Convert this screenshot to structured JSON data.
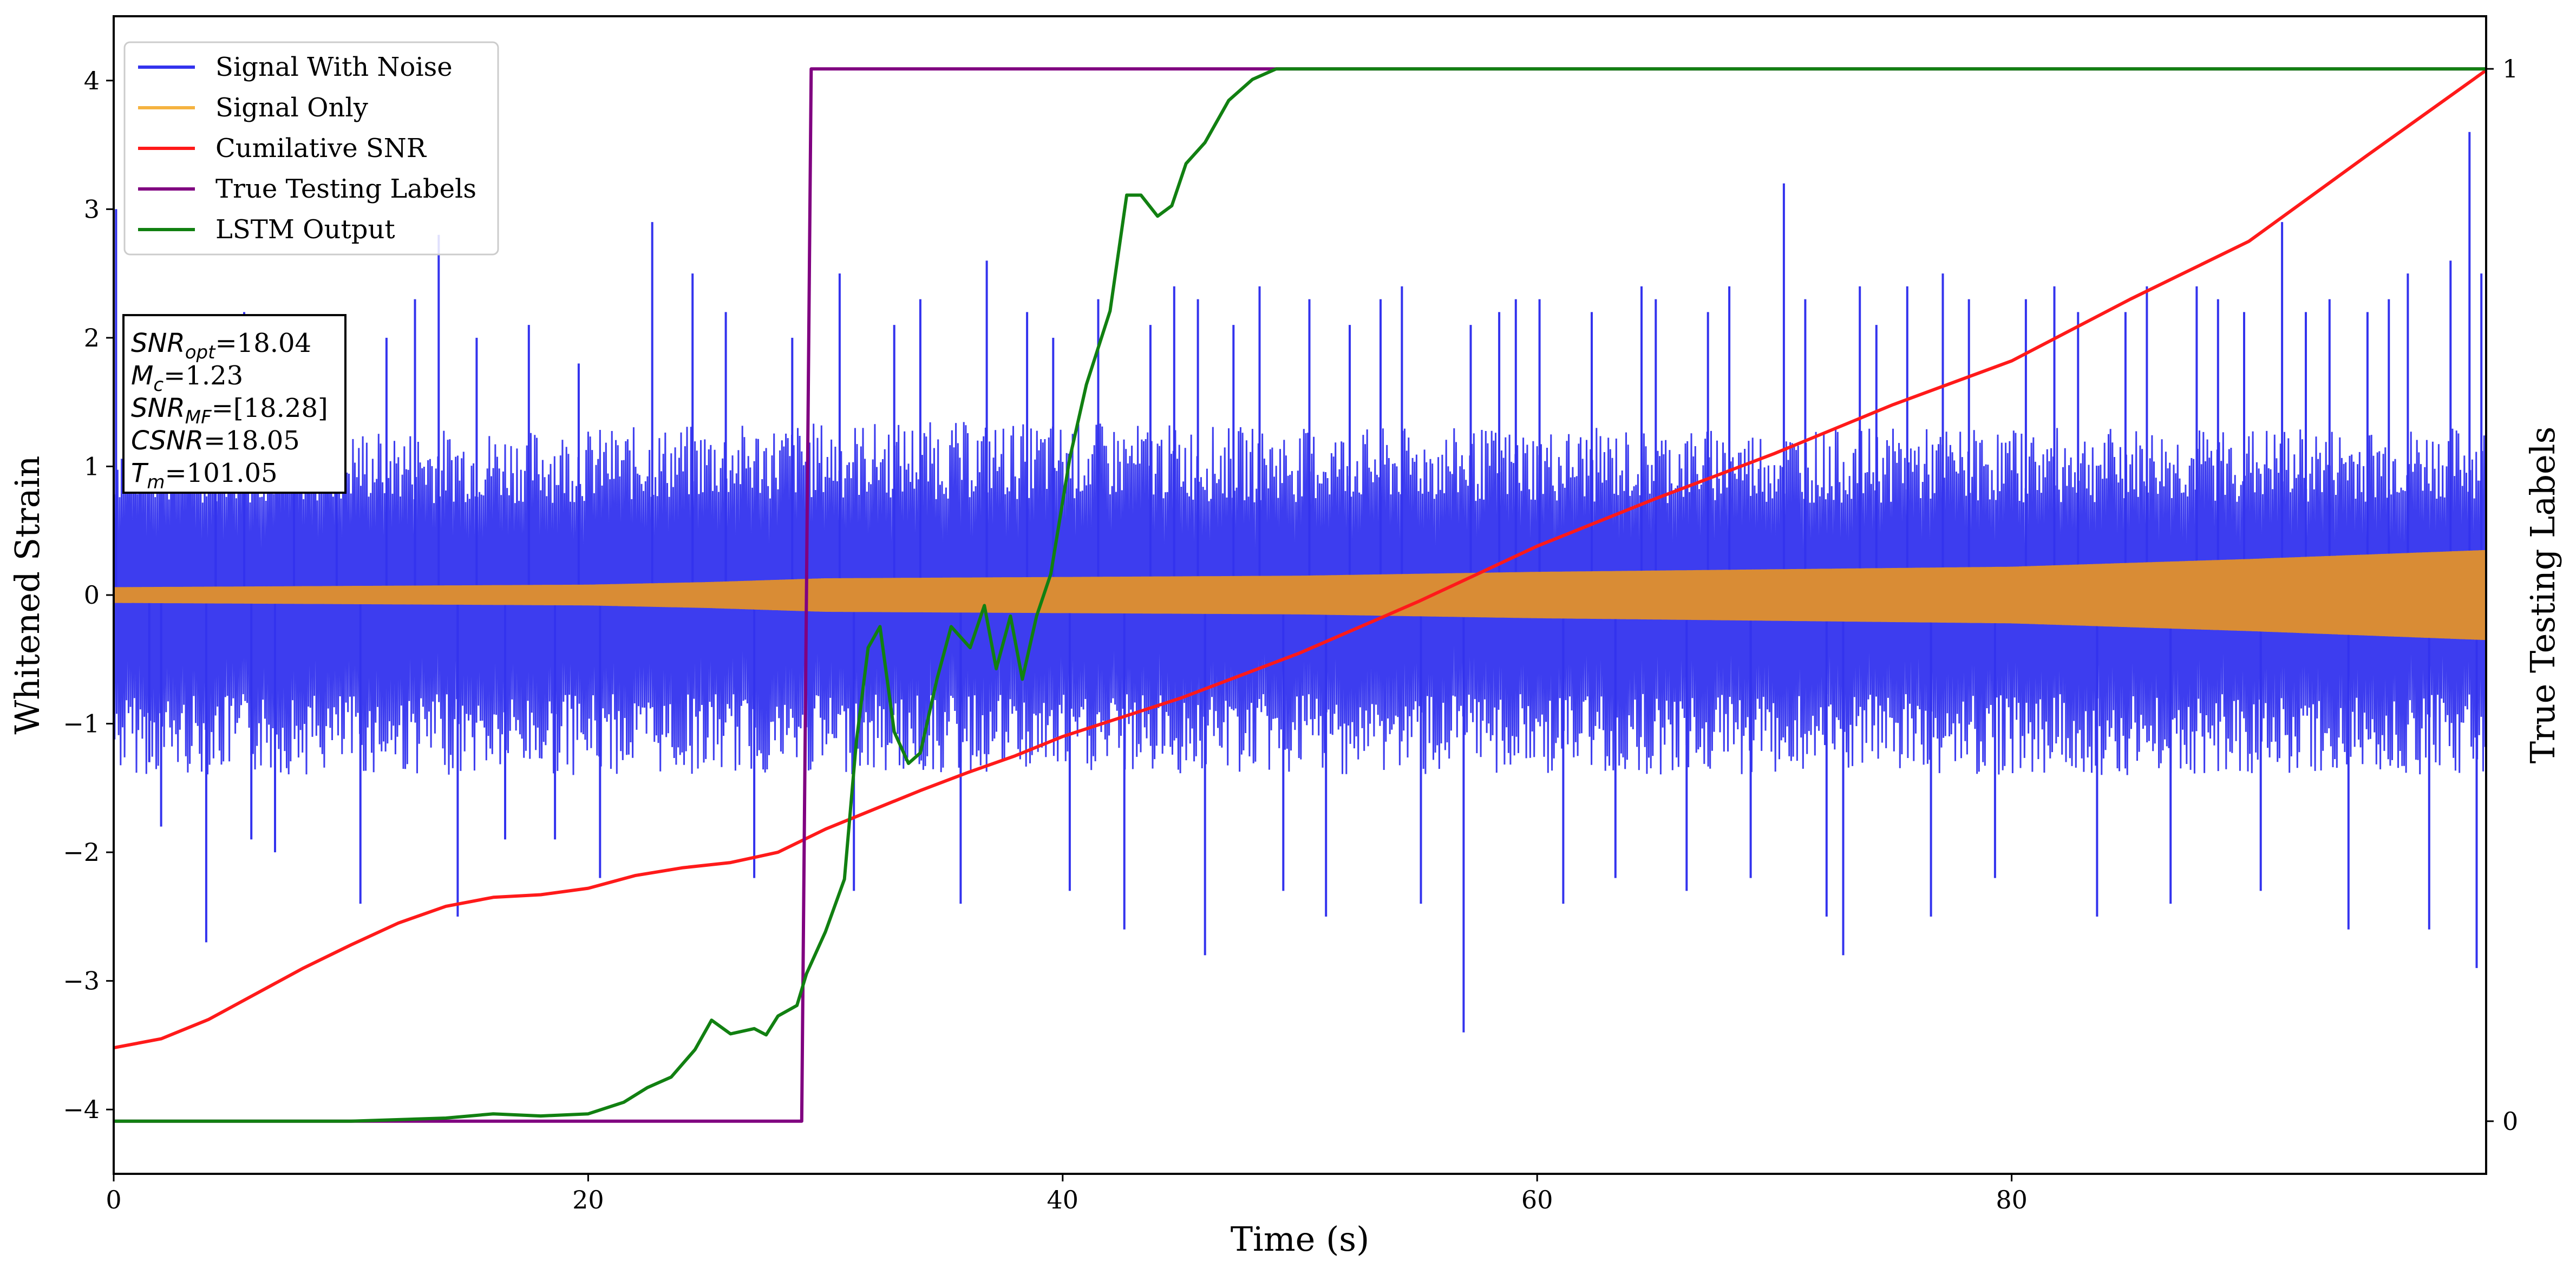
{
  "chart_data": {
    "type": "line",
    "title": "",
    "xlabel": "Time (s)",
    "ylabel": "Whitened Strain",
    "y2label": "True Testing Labels",
    "xlim": [
      0,
      100
    ],
    "ylim": [
      -4.5,
      4.5
    ],
    "y2lim": [
      -0.05,
      1.05
    ],
    "xticks": [
      0,
      20,
      40,
      60,
      80
    ],
    "yticks": [
      -4,
      -3,
      -2,
      -1,
      0,
      1,
      2,
      3,
      4
    ],
    "y2ticks": [
      0,
      1
    ],
    "tick_labels": {
      "x": [
        "0",
        "20",
        "40",
        "60",
        "80"
      ],
      "y": [
        "−4",
        "−3",
        "−2",
        "−1",
        "0",
        "1",
        "2",
        "3",
        "4"
      ],
      "y2": [
        "0",
        "1"
      ]
    },
    "grid": false,
    "legend_position": "upper-left",
    "legend": [
      {
        "name": "Signal With Noise",
        "color": "#3333ee"
      },
      {
        "name": "Signal Only",
        "color": "#f5b340"
      },
      {
        "name": "Cumilative SNR",
        "color": "#ff1a1a"
      },
      {
        "name": "True Testing Labels",
        "color": "#800080"
      },
      {
        "name": "LSTM Output",
        "color": "#118011"
      }
    ],
    "stats_box": {
      "lines": [
        {
          "sym": "SNR",
          "sub": "opt",
          "val": "=18.04"
        },
        {
          "sym": "M",
          "sub": "c",
          "val": "=1.23"
        },
        {
          "sym": "SNR",
          "sub": "MF",
          "val": "=[18.28]"
        },
        {
          "sym": "CSNR",
          "sub": "",
          "val": "=18.05"
        },
        {
          "sym": "T",
          "sub": "m",
          "val": "=101.05"
        }
      ]
    },
    "series": [
      {
        "name": "Signal With Noise",
        "axis": "left",
        "note": "dense noisy band roughly between -1.5 and 1.5 with spikes",
        "x": [
          0,
          10,
          20,
          30,
          40,
          50,
          60,
          70,
          80,
          90,
          100
        ],
        "upper": [
          1.3,
          1.3,
          1.3,
          1.35,
          1.35,
          1.3,
          1.3,
          1.3,
          1.3,
          1.3,
          1.3
        ],
        "lower": [
          -1.4,
          -1.4,
          -1.4,
          -1.4,
          -1.4,
          -1.4,
          -1.4,
          -1.4,
          -1.4,
          -1.4,
          -1.4
        ],
        "spikes": [
          {
            "x": 0.1,
            "y": 3.0
          },
          {
            "x": 1.5,
            "y": -1.3
          },
          {
            "x": 2.0,
            "y": -1.8
          },
          {
            "x": 3.9,
            "y": -2.7
          },
          {
            "x": 4.3,
            "y": 2.0
          },
          {
            "x": 5.5,
            "y": 2.2
          },
          {
            "x": 5.8,
            "y": -1.9
          },
          {
            "x": 6.8,
            "y": -2.0
          },
          {
            "x": 7.6,
            "y": 1.8
          },
          {
            "x": 9.4,
            "y": 2.1
          },
          {
            "x": 10.4,
            "y": -2.4
          },
          {
            "x": 11.5,
            "y": 2.0
          },
          {
            "x": 12.7,
            "y": 2.3
          },
          {
            "x": 13.7,
            "y": 2.8
          },
          {
            "x": 14.5,
            "y": -2.5
          },
          {
            "x": 15.3,
            "y": 2.0
          },
          {
            "x": 16.5,
            "y": -1.9
          },
          {
            "x": 17.5,
            "y": 2.1
          },
          {
            "x": 18.6,
            "y": -1.9
          },
          {
            "x": 19.6,
            "y": 1.8
          },
          {
            "x": 20.5,
            "y": -2.2
          },
          {
            "x": 22.7,
            "y": 2.9
          },
          {
            "x": 24.4,
            "y": 2.5
          },
          {
            "x": 25.8,
            "y": 2.2
          },
          {
            "x": 27.0,
            "y": -2.2
          },
          {
            "x": 28.6,
            "y": 2.0
          },
          {
            "x": 30.6,
            "y": 2.5
          },
          {
            "x": 31.2,
            "y": -2.3
          },
          {
            "x": 32.9,
            "y": 2.1
          },
          {
            "x": 34.0,
            "y": 2.3
          },
          {
            "x": 35.7,
            "y": -2.4
          },
          {
            "x": 36.8,
            "y": 2.6
          },
          {
            "x": 38.5,
            "y": 2.2
          },
          {
            "x": 39.6,
            "y": 2.0
          },
          {
            "x": 40.3,
            "y": -2.3
          },
          {
            "x": 41.5,
            "y": 2.3
          },
          {
            "x": 42.6,
            "y": -2.6
          },
          {
            "x": 43.7,
            "y": 2.1
          },
          {
            "x": 44.7,
            "y": 2.4
          },
          {
            "x": 45.7,
            "y": 2.3
          },
          {
            "x": 46.0,
            "y": -2.8
          },
          {
            "x": 47.2,
            "y": 2.1
          },
          {
            "x": 48.3,
            "y": 2.4
          },
          {
            "x": 49.3,
            "y": -2.3
          },
          {
            "x": 50.4,
            "y": 2.3
          },
          {
            "x": 51.1,
            "y": -2.5
          },
          {
            "x": 52.1,
            "y": 2.1
          },
          {
            "x": 53.4,
            "y": 2.3
          },
          {
            "x": 54.3,
            "y": 2.4
          },
          {
            "x": 55.1,
            "y": -2.4
          },
          {
            "x": 56.9,
            "y": -3.4
          },
          {
            "x": 57.2,
            "y": 2.1
          },
          {
            "x": 58.4,
            "y": 2.2
          },
          {
            "x": 59.1,
            "y": 2.3
          },
          {
            "x": 60.1,
            "y": 2.3
          },
          {
            "x": 61.1,
            "y": -2.4
          },
          {
            "x": 62.3,
            "y": 2.2
          },
          {
            "x": 63.3,
            "y": -2.2
          },
          {
            "x": 64.4,
            "y": 2.4
          },
          {
            "x": 65.0,
            "y": 2.3
          },
          {
            "x": 66.3,
            "y": -2.3
          },
          {
            "x": 67.2,
            "y": 2.2
          },
          {
            "x": 68.1,
            "y": 2.4
          },
          {
            "x": 69.0,
            "y": -2.2
          },
          {
            "x": 70.4,
            "y": 3.2
          },
          {
            "x": 71.3,
            "y": 2.3
          },
          {
            "x": 72.2,
            "y": -2.5
          },
          {
            "x": 72.9,
            "y": -2.8
          },
          {
            "x": 73.6,
            "y": 2.4
          },
          {
            "x": 74.3,
            "y": 2.1
          },
          {
            "x": 75.6,
            "y": 2.4
          },
          {
            "x": 76.6,
            "y": -2.5
          },
          {
            "x": 77.1,
            "y": 2.5
          },
          {
            "x": 78.2,
            "y": 2.3
          },
          {
            "x": 79.3,
            "y": -2.2
          },
          {
            "x": 80.6,
            "y": 2.3
          },
          {
            "x": 81.8,
            "y": 2.4
          },
          {
            "x": 82.8,
            "y": 2.2
          },
          {
            "x": 83.6,
            "y": -2.5
          },
          {
            "x": 84.8,
            "y": 2.2
          },
          {
            "x": 85.7,
            "y": 2.4
          },
          {
            "x": 86.7,
            "y": -2.4
          },
          {
            "x": 87.8,
            "y": 2.4
          },
          {
            "x": 88.7,
            "y": 2.3
          },
          {
            "x": 89.8,
            "y": 2.2
          },
          {
            "x": 90.5,
            "y": -2.3
          },
          {
            "x": 91.4,
            "y": 2.9
          },
          {
            "x": 92.4,
            "y": 2.2
          },
          {
            "x": 93.4,
            "y": 2.3
          },
          {
            "x": 94.2,
            "y": -2.6
          },
          {
            "x": 95.0,
            "y": 2.2
          },
          {
            "x": 95.9,
            "y": 2.3
          },
          {
            "x": 96.7,
            "y": 2.5
          },
          {
            "x": 97.6,
            "y": -2.6
          },
          {
            "x": 98.5,
            "y": 2.6
          },
          {
            "x": 99.3,
            "y": 3.6
          },
          {
            "x": 99.6,
            "y": -2.9
          },
          {
            "x": 99.8,
            "y": 2.5
          }
        ]
      },
      {
        "name": "Signal Only",
        "axis": "left",
        "note": "oscillating band, amplitude envelope",
        "x": [
          0,
          10,
          20,
          25,
          30,
          40,
          50,
          60,
          70,
          80,
          90,
          100
        ],
        "amplitude": [
          0.06,
          0.07,
          0.08,
          0.1,
          0.13,
          0.14,
          0.15,
          0.18,
          0.2,
          0.22,
          0.28,
          0.35
        ]
      },
      {
        "name": "Cumilative SNR",
        "axis": "left",
        "x": [
          0,
          2,
          4,
          6,
          8,
          10,
          12,
          14,
          16,
          18,
          20,
          22,
          24,
          26,
          28,
          30,
          32,
          34,
          36,
          38,
          40,
          45,
          50,
          55,
          60,
          65,
          70,
          75,
          80,
          85,
          90,
          95,
          100
        ],
        "y": [
          -3.52,
          -3.45,
          -3.3,
          -3.1,
          -2.9,
          -2.72,
          -2.55,
          -2.42,
          -2.35,
          -2.33,
          -2.28,
          -2.18,
          -2.12,
          -2.08,
          -2.0,
          -1.82,
          -1.67,
          -1.52,
          -1.38,
          -1.25,
          -1.1,
          -0.8,
          -0.45,
          -0.05,
          0.38,
          0.75,
          1.1,
          1.48,
          1.82,
          2.3,
          2.75,
          3.42,
          4.08
        ]
      },
      {
        "name": "True Testing Labels",
        "axis": "right",
        "x": [
          0,
          29.0,
          29.4,
          100
        ],
        "y": [
          0,
          0,
          1,
          1
        ]
      },
      {
        "name": "LSTM Output",
        "axis": "right",
        "x": [
          0,
          10,
          14,
          16,
          18,
          20,
          21.5,
          22.5,
          23.5,
          24.5,
          25.2,
          26,
          27,
          27.5,
          28,
          28.8,
          29.2,
          30,
          30.8,
          31.3,
          31.8,
          32.3,
          32.9,
          33.5,
          34,
          34.7,
          35.3,
          36.1,
          36.7,
          37.2,
          37.8,
          38.3,
          38.9,
          39.5,
          40.3,
          41,
          42,
          42.7,
          43.3,
          44,
          44.6,
          45.2,
          46,
          47,
          48,
          49,
          50,
          51,
          52,
          53,
          54,
          55,
          56.5,
          100
        ],
        "y": [
          0,
          0,
          0.003,
          0.007,
          0.005,
          0.007,
          0.018,
          0.032,
          0.042,
          0.068,
          0.096,
          0.083,
          0.088,
          0.082,
          0.1,
          0.11,
          0.14,
          0.18,
          0.23,
          0.36,
          0.45,
          0.47,
          0.37,
          0.34,
          0.35,
          0.42,
          0.47,
          0.45,
          0.49,
          0.43,
          0.48,
          0.42,
          0.48,
          0.52,
          0.63,
          0.7,
          0.77,
          0.88,
          0.88,
          0.86,
          0.87,
          0.91,
          0.93,
          0.97,
          0.99,
          1.0,
          1.0,
          1.0,
          1.0,
          1.0,
          1.0,
          1.0,
          1.0,
          1.0
        ]
      }
    ]
  }
}
